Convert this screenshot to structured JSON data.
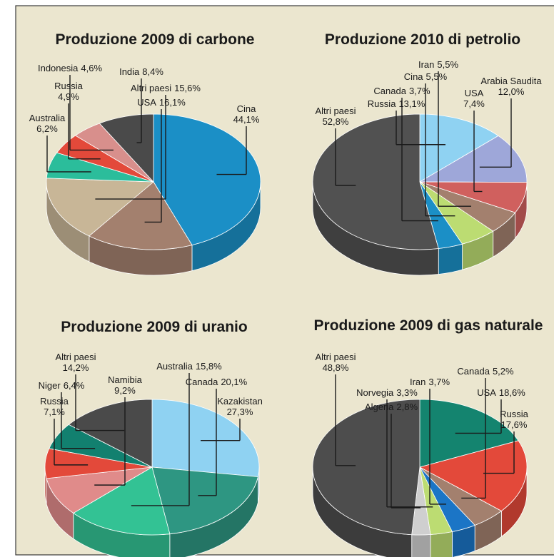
{
  "chart_data": [
    {
      "type": "pie",
      "title": "Produzione 2009 di carbone",
      "categories": [
        "Cina",
        "USA",
        "Altri paesi",
        "Australia",
        "Russia",
        "Indonesia",
        "India"
      ],
      "values": [
        44.1,
        16.1,
        15.6,
        6.2,
        4.9,
        4.6,
        8.4
      ],
      "value_labels": [
        "44,1%",
        "16,1%",
        "15,6%",
        "6,2%",
        "4,9%",
        "4,6%",
        "8,4%"
      ],
      "colors": [
        "#1b8fc6",
        "#a3806e",
        "#c8b697",
        "#2bbd9b",
        "#e3493a",
        "#d88f8c",
        "#4a4a4a"
      ]
    },
    {
      "type": "pie",
      "title": "Produzione 2010 di petrolio",
      "categories": [
        "Russia",
        "Arabia Saudita",
        "USA",
        "Iran",
        "Cina",
        "Canada",
        "Altri paesi"
      ],
      "values": [
        13.1,
        12.0,
        7.4,
        5.5,
        5.5,
        3.7,
        52.8
      ],
      "value_labels": [
        "13,1%",
        "12,0%",
        "7,4%",
        "5,5%",
        "5,5%",
        "3,7%",
        "52,8%"
      ],
      "colors": [
        "#8fd2f2",
        "#9ea7d9",
        "#d0605e",
        "#a3806e",
        "#bcdc72",
        "#1b8fc6",
        "#515151"
      ]
    },
    {
      "type": "pie",
      "title": "Produzione 2009 di uranio",
      "categories": [
        "Kazakistan",
        "Canada",
        "Australia",
        "Namibia",
        "Russia",
        "Niger",
        "Altri paesi"
      ],
      "values": [
        27.3,
        20.1,
        15.8,
        9.2,
        7.1,
        6.4,
        14.2
      ],
      "value_labels": [
        "27,3%",
        "20,1%",
        "15,8%",
        "9,2%",
        "7,1%",
        "6,4%",
        "14,2%"
      ],
      "colors": [
        "#8fd2f2",
        "#2e9682",
        "#33c294",
        "#e08b8a",
        "#e3493a",
        "#12806f",
        "#4a4a4a"
      ]
    },
    {
      "type": "pie",
      "title": "Produzione 2009 di gas naturale",
      "categories": [
        "USA",
        "Russia",
        "Canada",
        "Iran",
        "Norvegia",
        "Algeria",
        "Altri paesi"
      ],
      "values": [
        18.6,
        17.6,
        5.2,
        3.7,
        3.3,
        2.8,
        48.8
      ],
      "value_labels": [
        "18,6%",
        "17,6%",
        "5,2%",
        "3,7%",
        "3,3%",
        "2,8%",
        "48,8%"
      ],
      "colors": [
        "#14846f",
        "#e3493a",
        "#a3806e",
        "#1b75c6",
        "#bcdc72",
        "#cfcfcf",
        "#4d4d4d"
      ]
    }
  ]
}
